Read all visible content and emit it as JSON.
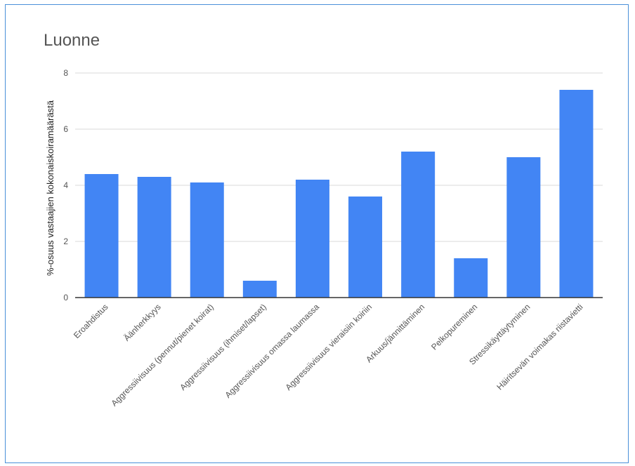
{
  "chart_data": {
    "type": "bar",
    "title": "Luonne",
    "ylabel": "%-osuus vastaajien kokonaiskoiramäärästä",
    "xlabel": "",
    "ylim": [
      0,
      8
    ],
    "yticks": [
      0,
      2,
      4,
      6,
      8
    ],
    "grid": true,
    "legend": "none",
    "bar_color": "#4285f4",
    "categories": [
      "Eroahdistus",
      "Äänherkkyys",
      "Aggressiivisuus (pennut/pienet koirat)",
      "Aggressiivisuus (ihmiset/lapset)",
      "Aggressiivisuus omassa laumassa",
      "Aggressiivisuus vieraisiin koiriin",
      "Arkuus/jännittäminen",
      "Pelkopureminen",
      "Stressikäyttäytyminen",
      "Häiritsevän voimakas riistavietti"
    ],
    "values": [
      4.4,
      4.3,
      4.1,
      0.6,
      4.2,
      3.6,
      5.2,
      1.4,
      5.0,
      7.4
    ]
  }
}
